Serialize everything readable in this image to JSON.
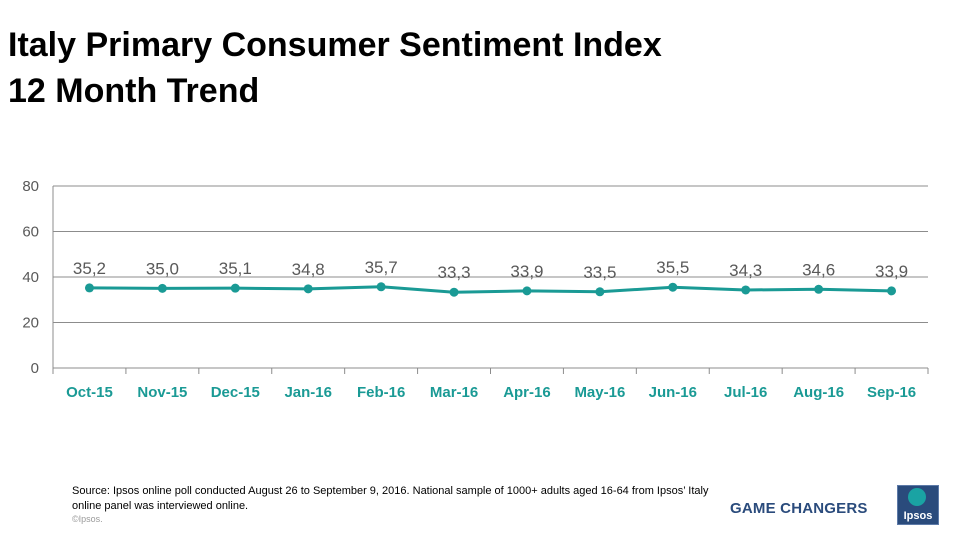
{
  "title": {
    "line1": "Italy Primary Consumer Sentiment Index",
    "line2": "12 Month Trend"
  },
  "chart_data": {
    "type": "line",
    "title": "Italy Primary Consumer Sentiment Index 12 Month Trend",
    "categories": [
      "Oct-15",
      "Nov-15",
      "Dec-15",
      "Jan-16",
      "Feb-16",
      "Mar-16",
      "Apr-16",
      "May-16",
      "Jun-16",
      "Jul-16",
      "Aug-16",
      "Sep-16"
    ],
    "series": [
      {
        "name": "Primary Consumer Sentiment Index",
        "values": [
          35.2,
          35.0,
          35.1,
          34.8,
          35.7,
          33.3,
          33.9,
          33.5,
          35.5,
          34.3,
          34.6,
          33.9
        ],
        "labels": [
          "35,2",
          "35,0",
          "35,1",
          "34,8",
          "35,7",
          "33,3",
          "33,9",
          "33,5",
          "35,5",
          "34,3",
          "34,6",
          "33,9"
        ]
      }
    ],
    "ylim": [
      0,
      80
    ],
    "yticks": [
      "0",
      "20",
      "40",
      "60",
      "80"
    ],
    "ytick_values": [
      0,
      20,
      40,
      60,
      80
    ],
    "grid": true,
    "xlabel": "",
    "ylabel": ""
  },
  "colors": {
    "line": "#1a9a95",
    "category_label": "#1a9a95",
    "gridline": "#8c8c8c",
    "data_label": "#595959",
    "axis_tick": "#595959"
  },
  "footer": {
    "source": "Source: Ipsos online poll conducted August 26 to September 9, 2016. National sample of 1000+ adults aged 16-64 from Ipsos’ Italy online panel was interviewed online.",
    "copyright": "©Ipsos.",
    "tagline": "GAME CHANGERS",
    "logo_text": "Ipsos"
  }
}
